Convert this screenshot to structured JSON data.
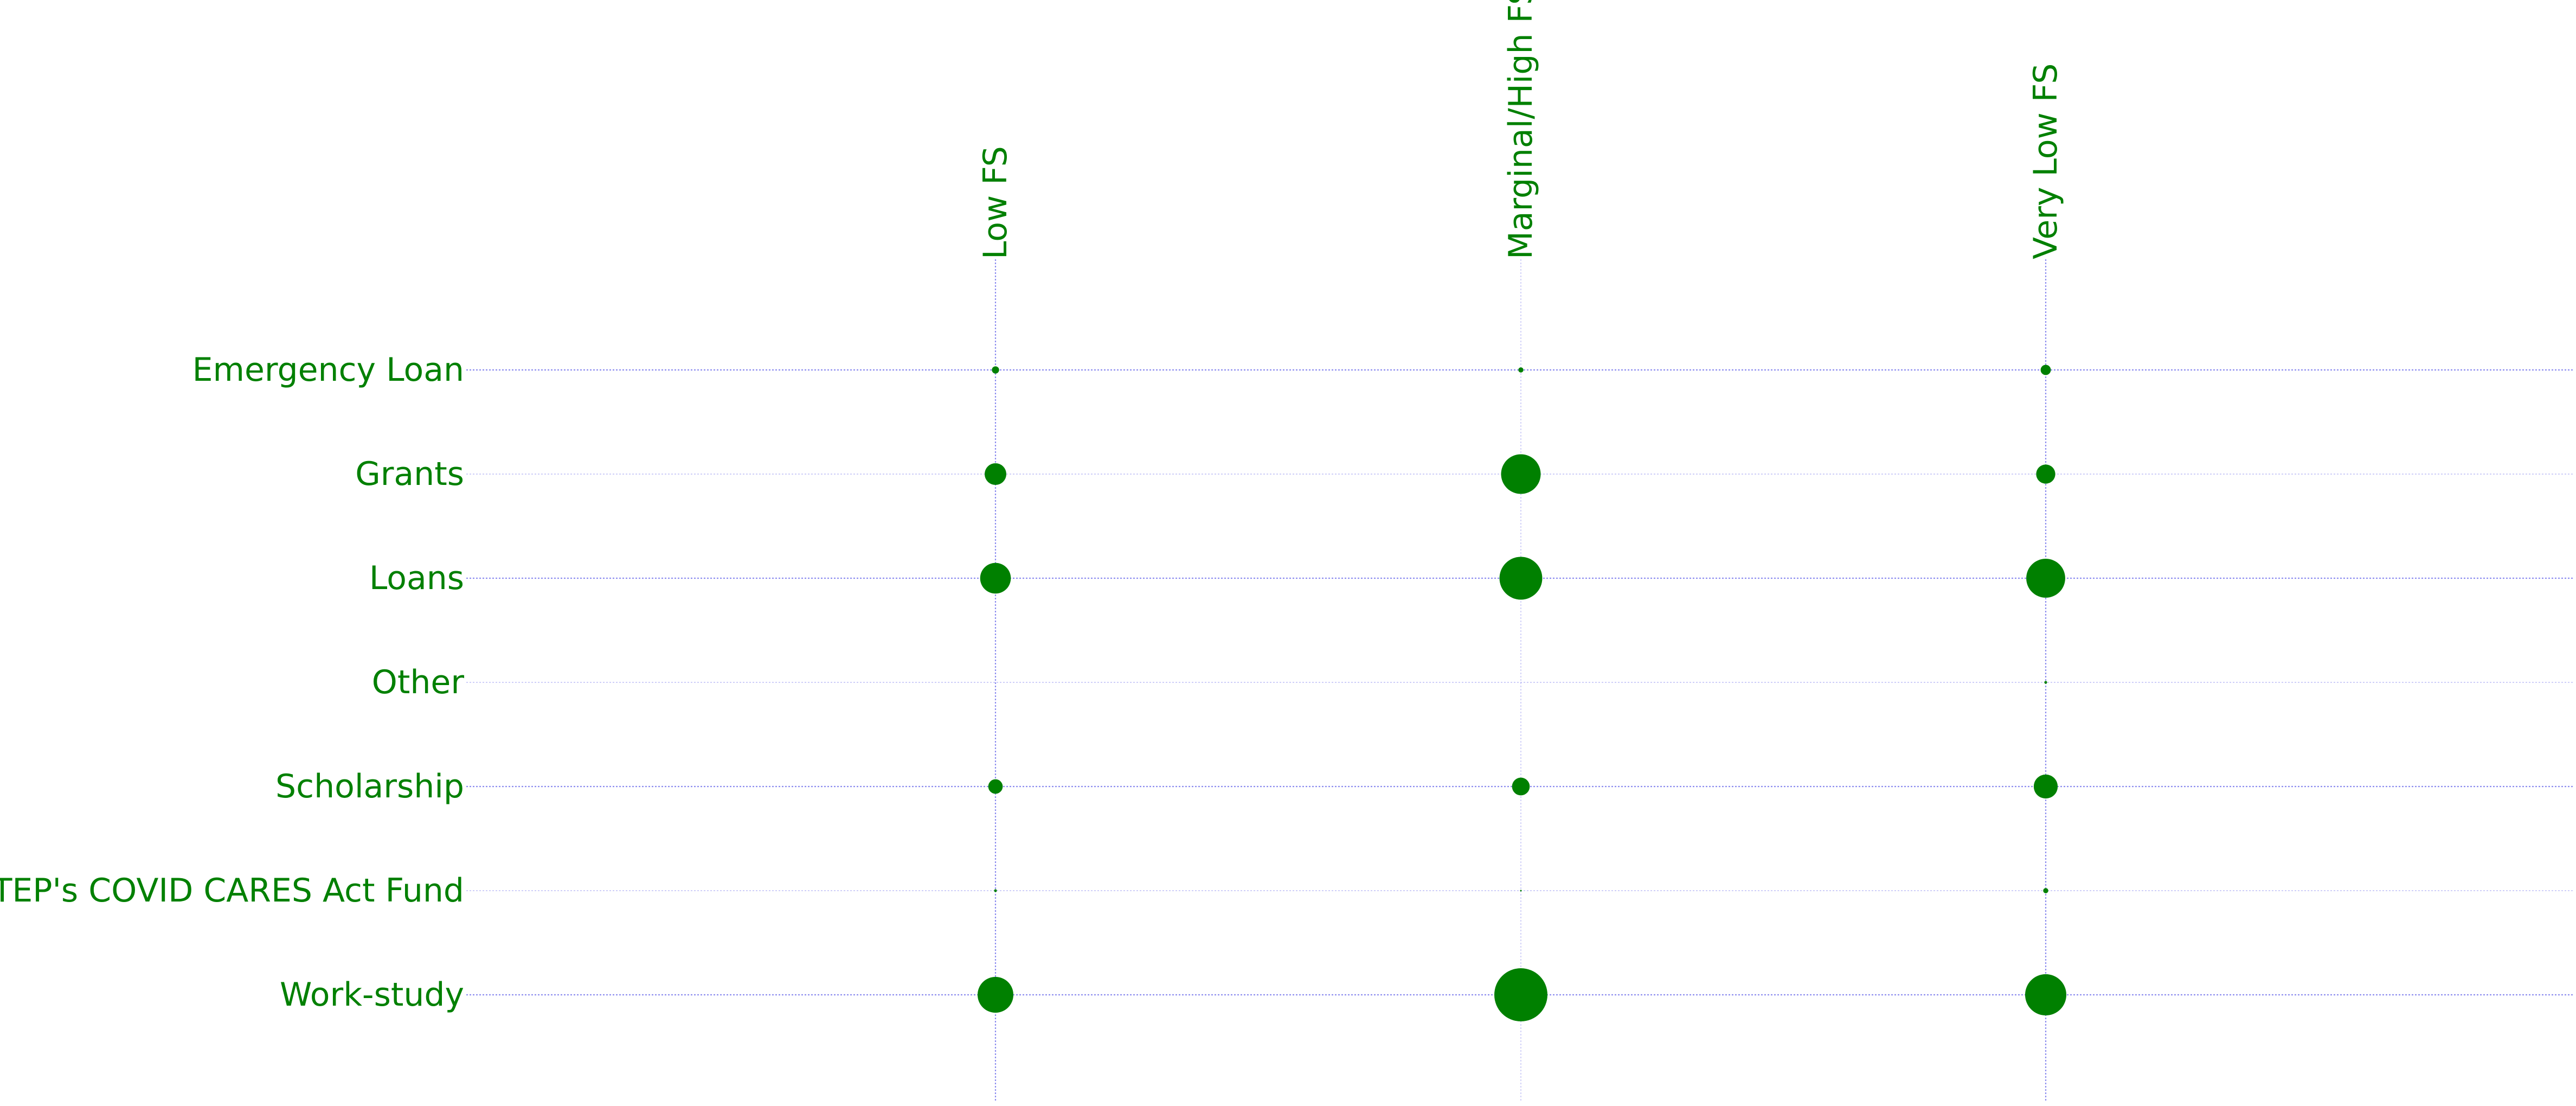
{
  "chart_data": {
    "type": "scatter",
    "title": "",
    "xlabel": "",
    "ylabel": "",
    "x_categories": [
      "Low FS",
      "Marginal/High FS",
      "Very Low FS"
    ],
    "y_categories": [
      "Emergency Loan",
      "Grants",
      "Loans",
      "Other",
      "Scholarship",
      "UTEP's COVID CARES Act Fund",
      "Work-study"
    ],
    "size_encoding": "bubble area proportional to value",
    "values": [
      [
        2,
        1,
        4
      ],
      [
        18,
        60,
        14
      ],
      [
        36,
        70,
        58
      ],
      [
        0,
        0,
        0.3
      ],
      [
        8,
        12,
        22
      ],
      [
        0.3,
        0.1,
        1
      ],
      [
        49,
        108,
        65
      ]
    ],
    "grid": true,
    "legend": "none",
    "colors": {
      "marker": "#008000",
      "text": "#008000",
      "grid": "#8888ee"
    }
  }
}
